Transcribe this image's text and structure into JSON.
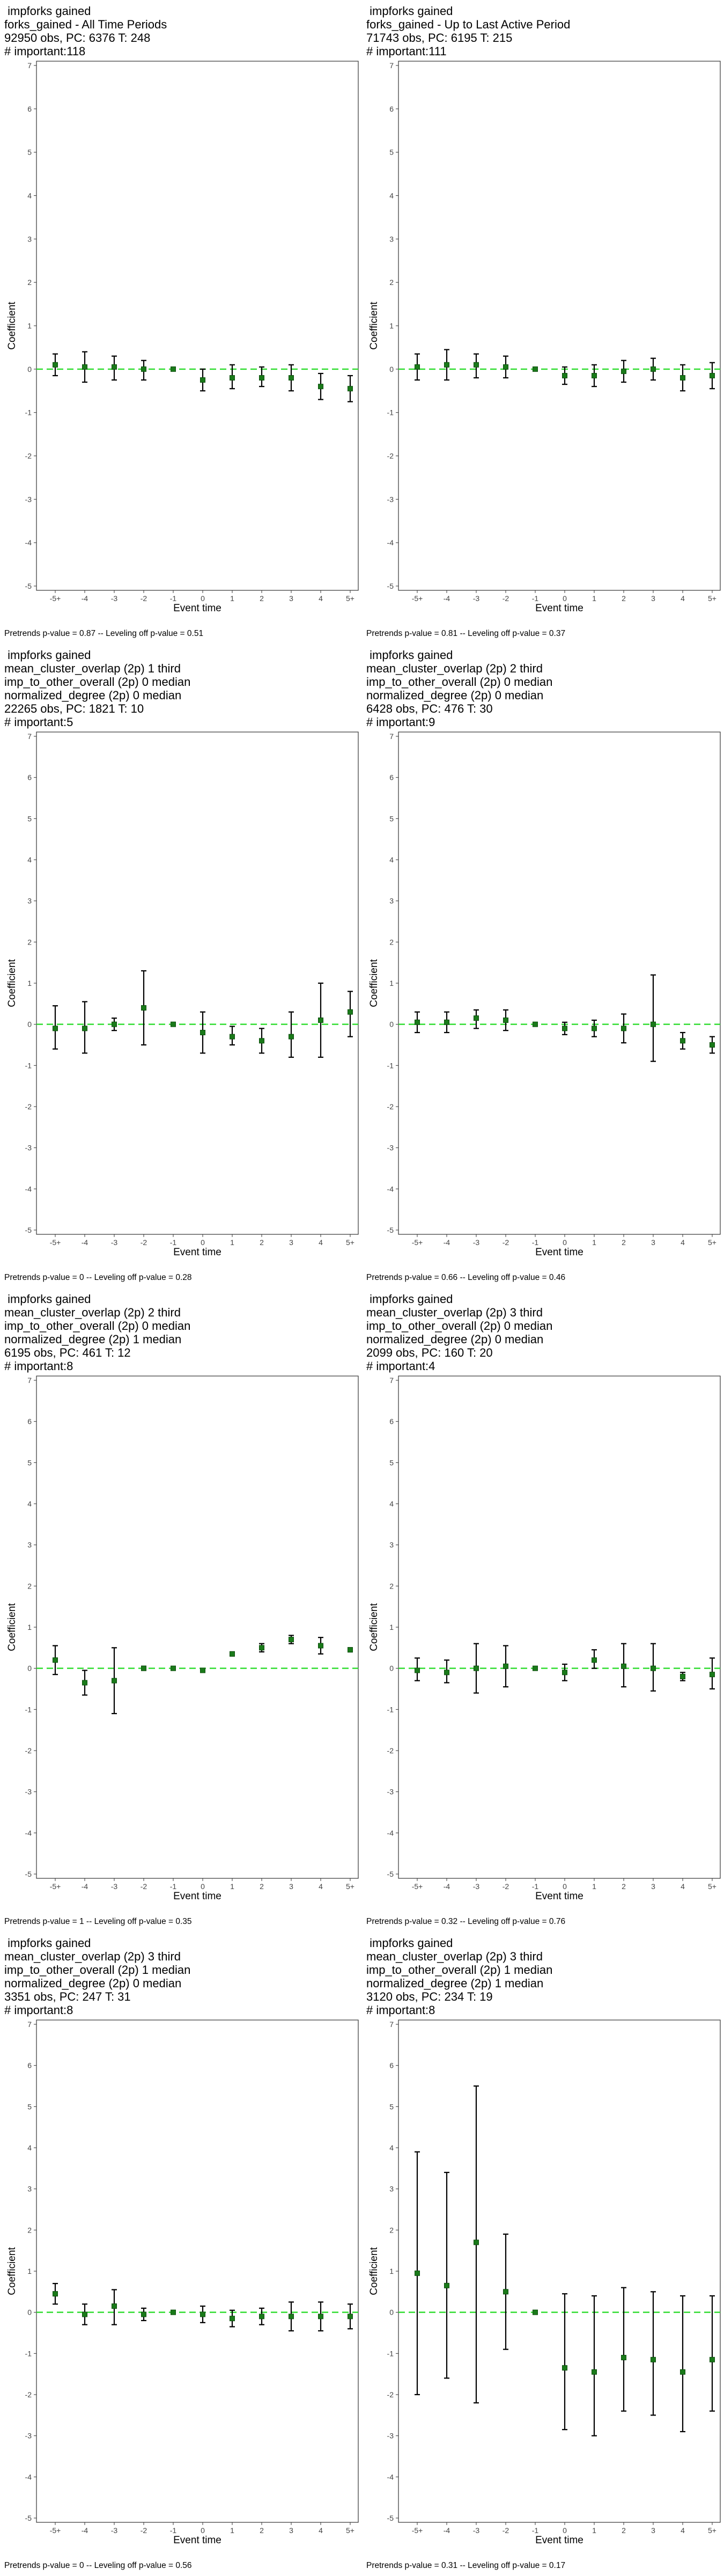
{
  "common": {
    "xlabel": "Event time",
    "ylabel": "Coefficient",
    "categories": [
      "-5+",
      "-4",
      "-3",
      "-2",
      "-1",
      "0",
      "1",
      "2",
      "3",
      "4",
      "5+"
    ],
    "ylim": [
      -5,
      7
    ],
    "yticks": [
      "-5",
      "-4",
      "-3",
      "-2",
      "-1",
      "0",
      "1",
      "2",
      "3",
      "4",
      "5",
      "6",
      "7"
    ],
    "colors": {
      "point": "#1a7a1a",
      "reference_line": "#33dd33",
      "error_bar": "#000000",
      "frame": "#333333"
    }
  },
  "chart_data": [
    {
      "type": "scatter",
      "title_lines": [
        " impforks gained",
        "forks_gained - All Time Periods",
        "92950 obs, PC: 6376 T: 248",
        "# important:118"
      ],
      "footnote": "Pretrends p-value = 0.87 -- Leveling off p-value = 0.51",
      "values": [
        0.1,
        0.05,
        0.05,
        0.0,
        0.0,
        -0.25,
        -0.2,
        -0.2,
        -0.2,
        -0.4,
        -0.45
      ],
      "lower": [
        -0.15,
        -0.3,
        -0.25,
        -0.25,
        0.0,
        -0.5,
        -0.45,
        -0.4,
        -0.5,
        -0.7,
        -0.75
      ],
      "upper": [
        0.35,
        0.4,
        0.3,
        0.2,
        0.0,
        0.0,
        0.1,
        0.05,
        0.1,
        -0.1,
        -0.15
      ]
    },
    {
      "type": "scatter",
      "title_lines": [
        " impforks gained",
        "forks_gained - Up to Last Active Period",
        "71743 obs, PC: 6195 T: 215",
        "# important:111"
      ],
      "footnote": "Pretrends p-value = 0.81 -- Leveling off p-value = 0.37",
      "values": [
        0.05,
        0.1,
        0.1,
        0.05,
        0.0,
        -0.15,
        -0.15,
        -0.05,
        0.0,
        -0.2,
        -0.15
      ],
      "lower": [
        -0.25,
        -0.25,
        -0.2,
        -0.2,
        0.0,
        -0.35,
        -0.4,
        -0.3,
        -0.25,
        -0.5,
        -0.45
      ],
      "upper": [
        0.35,
        0.45,
        0.35,
        0.3,
        0.0,
        0.05,
        0.1,
        0.2,
        0.25,
        0.1,
        0.15
      ]
    },
    {
      "type": "scatter",
      "title_lines": [
        " impforks gained",
        "mean_cluster_overlap (2p) 1 third",
        "imp_to_other_overall (2p) 0 median",
        "normalized_degree (2p) 0 median",
        "22265 obs, PC: 1821 T: 10",
        "# important:5"
      ],
      "footnote": "Pretrends p-value = 0 -- Leveling off p-value = 0.28",
      "values": [
        -0.1,
        -0.1,
        0.0,
        0.4,
        0.0,
        -0.2,
        -0.3,
        -0.4,
        -0.3,
        0.1,
        0.3
      ],
      "lower": [
        -0.6,
        -0.7,
        -0.15,
        -0.5,
        0.0,
        -0.7,
        -0.5,
        -0.7,
        -0.8,
        -0.8,
        -0.3
      ],
      "upper": [
        0.45,
        0.55,
        0.15,
        1.3,
        0.0,
        0.3,
        -0.05,
        -0.1,
        0.3,
        1.0,
        0.8
      ]
    },
    {
      "type": "scatter",
      "title_lines": [
        " impforks gained",
        "mean_cluster_overlap (2p) 2 third",
        "imp_to_other_overall (2p) 0 median",
        "normalized_degree (2p) 0 median",
        "6428 obs, PC: 476 T: 30",
        "# important:9"
      ],
      "footnote": "Pretrends p-value = 0.66 -- Leveling off p-value = 0.46",
      "values": [
        0.05,
        0.05,
        0.15,
        0.1,
        0.0,
        -0.1,
        -0.1,
        -0.1,
        0.0,
        -0.4,
        -0.5
      ],
      "lower": [
        -0.2,
        -0.2,
        -0.1,
        -0.15,
        0.0,
        -0.25,
        -0.3,
        -0.45,
        -0.9,
        -0.6,
        -0.7
      ],
      "upper": [
        0.3,
        0.3,
        0.35,
        0.35,
        0.0,
        0.05,
        0.1,
        0.25,
        1.2,
        -0.2,
        -0.3
      ]
    },
    {
      "type": "scatter",
      "title_lines": [
        " impforks gained",
        "mean_cluster_overlap (2p) 2 third",
        "imp_to_other_overall (2p) 0 median",
        "normalized_degree (2p) 1 median",
        "6195 obs, PC: 461 T: 12",
        "# important:8"
      ],
      "footnote": "Pretrends p-value = 1 -- Leveling off p-value = 0.35",
      "values": [
        0.2,
        -0.35,
        -0.3,
        0.0,
        0.0,
        -0.05,
        0.35,
        0.5,
        0.7,
        0.55,
        0.45
      ],
      "lower": [
        -0.15,
        -0.65,
        -1.1,
        -0.05,
        0.0,
        -0.1,
        0.3,
        0.4,
        0.6,
        0.35,
        0.4
      ],
      "upper": [
        0.55,
        -0.05,
        0.5,
        0.05,
        0.0,
        0.0,
        0.4,
        0.6,
        0.8,
        0.75,
        0.5
      ]
    },
    {
      "type": "scatter",
      "title_lines": [
        " impforks gained",
        "mean_cluster_overlap (2p) 3 third",
        "imp_to_other_overall (2p) 0 median",
        "normalized_degree (2p) 0 median",
        "2099 obs, PC: 160 T: 20",
        "# important:4"
      ],
      "footnote": "Pretrends p-value = 0.32 -- Leveling off p-value = 0.76",
      "values": [
        -0.05,
        -0.1,
        0.0,
        0.05,
        0.0,
        -0.1,
        0.2,
        0.05,
        0.0,
        -0.2,
        -0.15
      ],
      "lower": [
        -0.3,
        -0.35,
        -0.6,
        -0.45,
        0.0,
        -0.3,
        0.0,
        -0.45,
        -0.55,
        -0.3,
        -0.5
      ],
      "upper": [
        0.25,
        0.2,
        0.6,
        0.55,
        0.0,
        0.1,
        0.45,
        0.6,
        0.6,
        -0.1,
        0.25
      ]
    },
    {
      "type": "scatter",
      "title_lines": [
        " impforks gained",
        "mean_cluster_overlap (2p) 3 third",
        "imp_to_other_overall (2p) 1 median",
        "normalized_degree (2p) 0 median",
        "3351 obs, PC: 247 T: 31",
        "# important:8"
      ],
      "footnote": "Pretrends p-value = 0 -- Leveling off p-value = 0.56",
      "values": [
        0.45,
        -0.05,
        0.15,
        -0.05,
        0.0,
        -0.05,
        -0.15,
        -0.1,
        -0.1,
        -0.1,
        -0.1
      ],
      "lower": [
        0.2,
        -0.3,
        -0.3,
        -0.2,
        0.0,
        -0.25,
        -0.35,
        -0.3,
        -0.45,
        -0.45,
        -0.4
      ],
      "upper": [
        0.7,
        0.2,
        0.55,
        0.1,
        0.0,
        0.15,
        0.05,
        0.1,
        0.25,
        0.25,
        0.2
      ]
    },
    {
      "type": "scatter",
      "title_lines": [
        " impforks gained",
        "mean_cluster_overlap (2p) 3 third",
        "imp_to_other_overall (2p) 1 median",
        "normalized_degree (2p) 1 median",
        "3120 obs, PC: 234 T: 19",
        "# important:8"
      ],
      "footnote": "Pretrends p-value = 0.31 -- Leveling off p-value = 0.17",
      "values": [
        0.95,
        0.65,
        1.7,
        0.5,
        0.0,
        -1.35,
        -1.45,
        -1.1,
        -1.15,
        -1.45,
        -1.15
      ],
      "lower": [
        -2.0,
        -1.6,
        -2.2,
        -0.9,
        0.0,
        -2.85,
        -3.0,
        -2.4,
        -2.5,
        -2.9,
        -2.4
      ],
      "upper": [
        3.9,
        3.4,
        5.5,
        1.9,
        0.0,
        0.45,
        0.4,
        0.6,
        0.5,
        0.4,
        0.4
      ]
    }
  ]
}
